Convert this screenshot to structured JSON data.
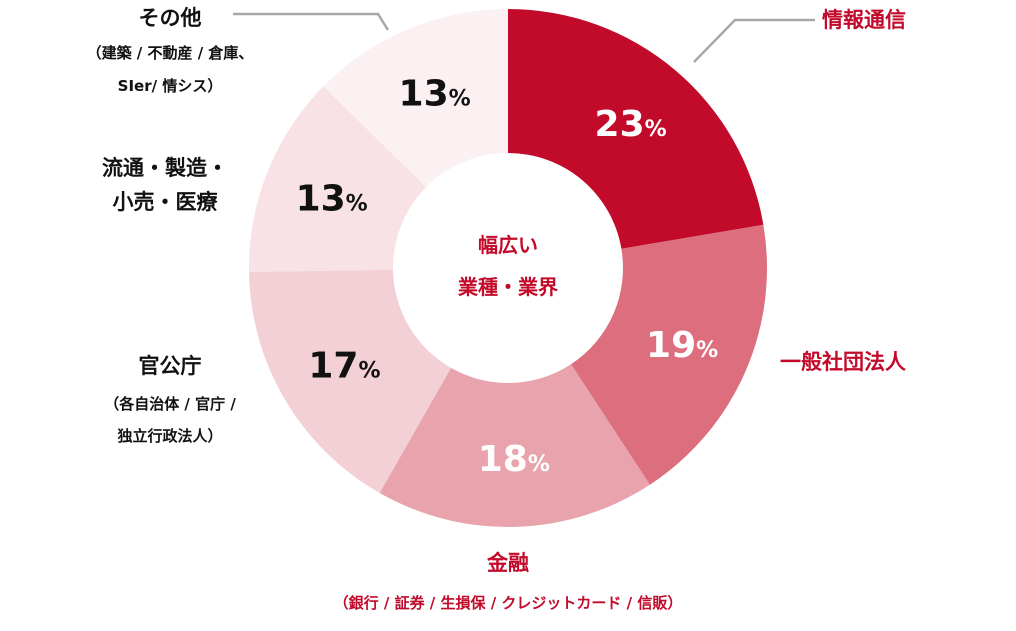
{
  "chart_data": {
    "type": "pie",
    "variant": "donut",
    "center_label": [
      "幅広い",
      "業種・業界"
    ],
    "categories": [
      "情報通信",
      "一般社団法人",
      "金融",
      "官公庁",
      "流通・製造・小売・医療",
      "その他"
    ],
    "values": [
      23,
      19,
      18,
      17,
      13,
      13
    ],
    "value_labels": [
      "23%",
      "19%",
      "18%",
      "17%",
      "13%",
      "13%"
    ],
    "sub_labels": [
      "",
      "",
      "（銀行 / 証券 / 生損保 / クレジットカード / 信販）",
      "（各自治体 / 官庁 / 独立行政法人）",
      "",
      "（建築 / 不動産 / 倉庫、SIer/ 情シス）"
    ],
    "colors": [
      "#c20a2a",
      "#dc6e7e",
      "#e8a3ac",
      "#f3d0d5",
      "#f8e2e5",
      "#fcf1f2"
    ],
    "value_label_colors": [
      "#ffffff",
      "#ffffff",
      "#ffffff",
      "#111111",
      "#111111",
      "#111111"
    ],
    "legend": "none"
  },
  "labels": {
    "joho": "情報通信",
    "ippan": "一般社団法人",
    "kinyu": "金融",
    "kinyu_sub": "（銀行 / 証券 / 生損保 / クレジットカード / 信販）",
    "kankocho": "官公庁",
    "kankocho_sub1": "（各自治体 / 官庁 /",
    "kankocho_sub2": "独立行政法人）",
    "ryutsu1": "流通・製造・",
    "ryutsu2": "小売・医療",
    "sonota": "その他",
    "sonota_sub1": "（建築 / 不動産 / 倉庫、",
    "sonota_sub2": "SIer/ 情シス）"
  },
  "colors": {
    "accent": "#c20a2a",
    "leader": "#a8a8a8"
  }
}
